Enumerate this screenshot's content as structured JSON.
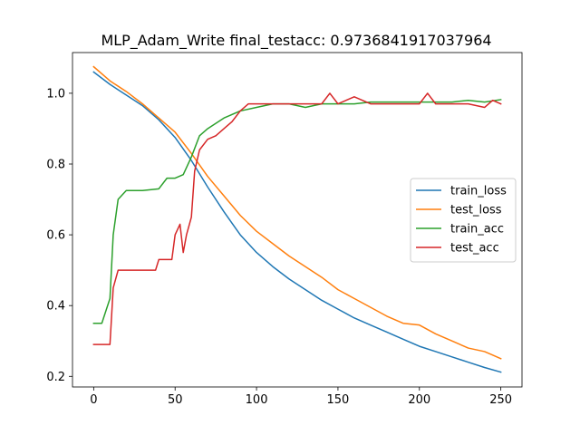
{
  "chart_data": {
    "type": "line",
    "title": "MLP_Adam_Write  final_testacc: 0.9736841917037964",
    "xlabel": "",
    "ylabel": "",
    "xlim": [
      -13,
      263
    ],
    "ylim": [
      0.17,
      1.115
    ],
    "x_ticks": [
      0,
      50,
      100,
      150,
      200,
      250
    ],
    "y_ticks": [
      0.2,
      0.4,
      0.6,
      0.8,
      1.0
    ],
    "x_tick_labels": [
      "0",
      "50",
      "100",
      "150",
      "200",
      "250"
    ],
    "y_tick_labels": [
      "0.2",
      "0.4",
      "0.6",
      "0.8",
      "1.0"
    ],
    "grid": false,
    "legend_position": "center-right",
    "series": [
      {
        "name": "train_loss",
        "color": "#1f77b4",
        "points": [
          [
            0,
            1.06
          ],
          [
            10,
            1.025
          ],
          [
            20,
            0.995
          ],
          [
            30,
            0.965
          ],
          [
            40,
            0.925
          ],
          [
            50,
            0.875
          ],
          [
            60,
            0.81
          ],
          [
            70,
            0.735
          ],
          [
            80,
            0.665
          ],
          [
            90,
            0.6
          ],
          [
            100,
            0.55
          ],
          [
            110,
            0.51
          ],
          [
            120,
            0.475
          ],
          [
            130,
            0.445
          ],
          [
            140,
            0.415
          ],
          [
            150,
            0.39
          ],
          [
            160,
            0.365
          ],
          [
            170,
            0.345
          ],
          [
            180,
            0.325
          ],
          [
            190,
            0.305
          ],
          [
            200,
            0.285
          ],
          [
            210,
            0.27
          ],
          [
            220,
            0.255
          ],
          [
            230,
            0.24
          ],
          [
            240,
            0.225
          ],
          [
            250,
            0.212
          ]
        ]
      },
      {
        "name": "test_loss",
        "color": "#ff7f0e",
        "points": [
          [
            0,
            1.075
          ],
          [
            10,
            1.035
          ],
          [
            20,
            1.005
          ],
          [
            30,
            0.97
          ],
          [
            40,
            0.93
          ],
          [
            50,
            0.89
          ],
          [
            60,
            0.83
          ],
          [
            70,
            0.765
          ],
          [
            80,
            0.71
          ],
          [
            90,
            0.655
          ],
          [
            100,
            0.61
          ],
          [
            110,
            0.575
          ],
          [
            120,
            0.54
          ],
          [
            130,
            0.51
          ],
          [
            140,
            0.48
          ],
          [
            150,
            0.445
          ],
          [
            160,
            0.42
          ],
          [
            170,
            0.395
          ],
          [
            180,
            0.37
          ],
          [
            190,
            0.35
          ],
          [
            200,
            0.345
          ],
          [
            210,
            0.32
          ],
          [
            220,
            0.3
          ],
          [
            230,
            0.28
          ],
          [
            240,
            0.27
          ],
          [
            245,
            0.26
          ],
          [
            250,
            0.25
          ]
        ]
      },
      {
        "name": "train_acc",
        "color": "#2ca02c",
        "points": [
          [
            0,
            0.35
          ],
          [
            5,
            0.35
          ],
          [
            10,
            0.42
          ],
          [
            12,
            0.6
          ],
          [
            15,
            0.7
          ],
          [
            20,
            0.725
          ],
          [
            30,
            0.725
          ],
          [
            40,
            0.73
          ],
          [
            45,
            0.76
          ],
          [
            50,
            0.76
          ],
          [
            55,
            0.77
          ],
          [
            60,
            0.82
          ],
          [
            65,
            0.88
          ],
          [
            70,
            0.9
          ],
          [
            80,
            0.93
          ],
          [
            90,
            0.95
          ],
          [
            100,
            0.96
          ],
          [
            110,
            0.97
          ],
          [
            120,
            0.97
          ],
          [
            130,
            0.96
          ],
          [
            140,
            0.97
          ],
          [
            150,
            0.97
          ],
          [
            160,
            0.97
          ],
          [
            170,
            0.975
          ],
          [
            180,
            0.975
          ],
          [
            190,
            0.975
          ],
          [
            200,
            0.975
          ],
          [
            210,
            0.975
          ],
          [
            220,
            0.975
          ],
          [
            230,
            0.98
          ],
          [
            240,
            0.975
          ],
          [
            250,
            0.982
          ]
        ]
      },
      {
        "name": "test_acc",
        "color": "#d62728",
        "points": [
          [
            0,
            0.29
          ],
          [
            10,
            0.29
          ],
          [
            12,
            0.45
          ],
          [
            15,
            0.5
          ],
          [
            20,
            0.5
          ],
          [
            30,
            0.5
          ],
          [
            38,
            0.5
          ],
          [
            40,
            0.53
          ],
          [
            48,
            0.53
          ],
          [
            50,
            0.6
          ],
          [
            53,
            0.63
          ],
          [
            55,
            0.55
          ],
          [
            57,
            0.6
          ],
          [
            60,
            0.65
          ],
          [
            62,
            0.78
          ],
          [
            65,
            0.84
          ],
          [
            70,
            0.87
          ],
          [
            75,
            0.88
          ],
          [
            80,
            0.9
          ],
          [
            85,
            0.92
          ],
          [
            90,
            0.95
          ],
          [
            95,
            0.97
          ],
          [
            100,
            0.97
          ],
          [
            110,
            0.97
          ],
          [
            120,
            0.97
          ],
          [
            130,
            0.97
          ],
          [
            140,
            0.97
          ],
          [
            145,
            1.0
          ],
          [
            150,
            0.97
          ],
          [
            160,
            0.99
          ],
          [
            170,
            0.97
          ],
          [
            180,
            0.97
          ],
          [
            190,
            0.97
          ],
          [
            200,
            0.97
          ],
          [
            205,
            1.0
          ],
          [
            210,
            0.97
          ],
          [
            220,
            0.97
          ],
          [
            230,
            0.97
          ],
          [
            240,
            0.96
          ],
          [
            245,
            0.98
          ],
          [
            250,
            0.97
          ]
        ]
      }
    ]
  }
}
